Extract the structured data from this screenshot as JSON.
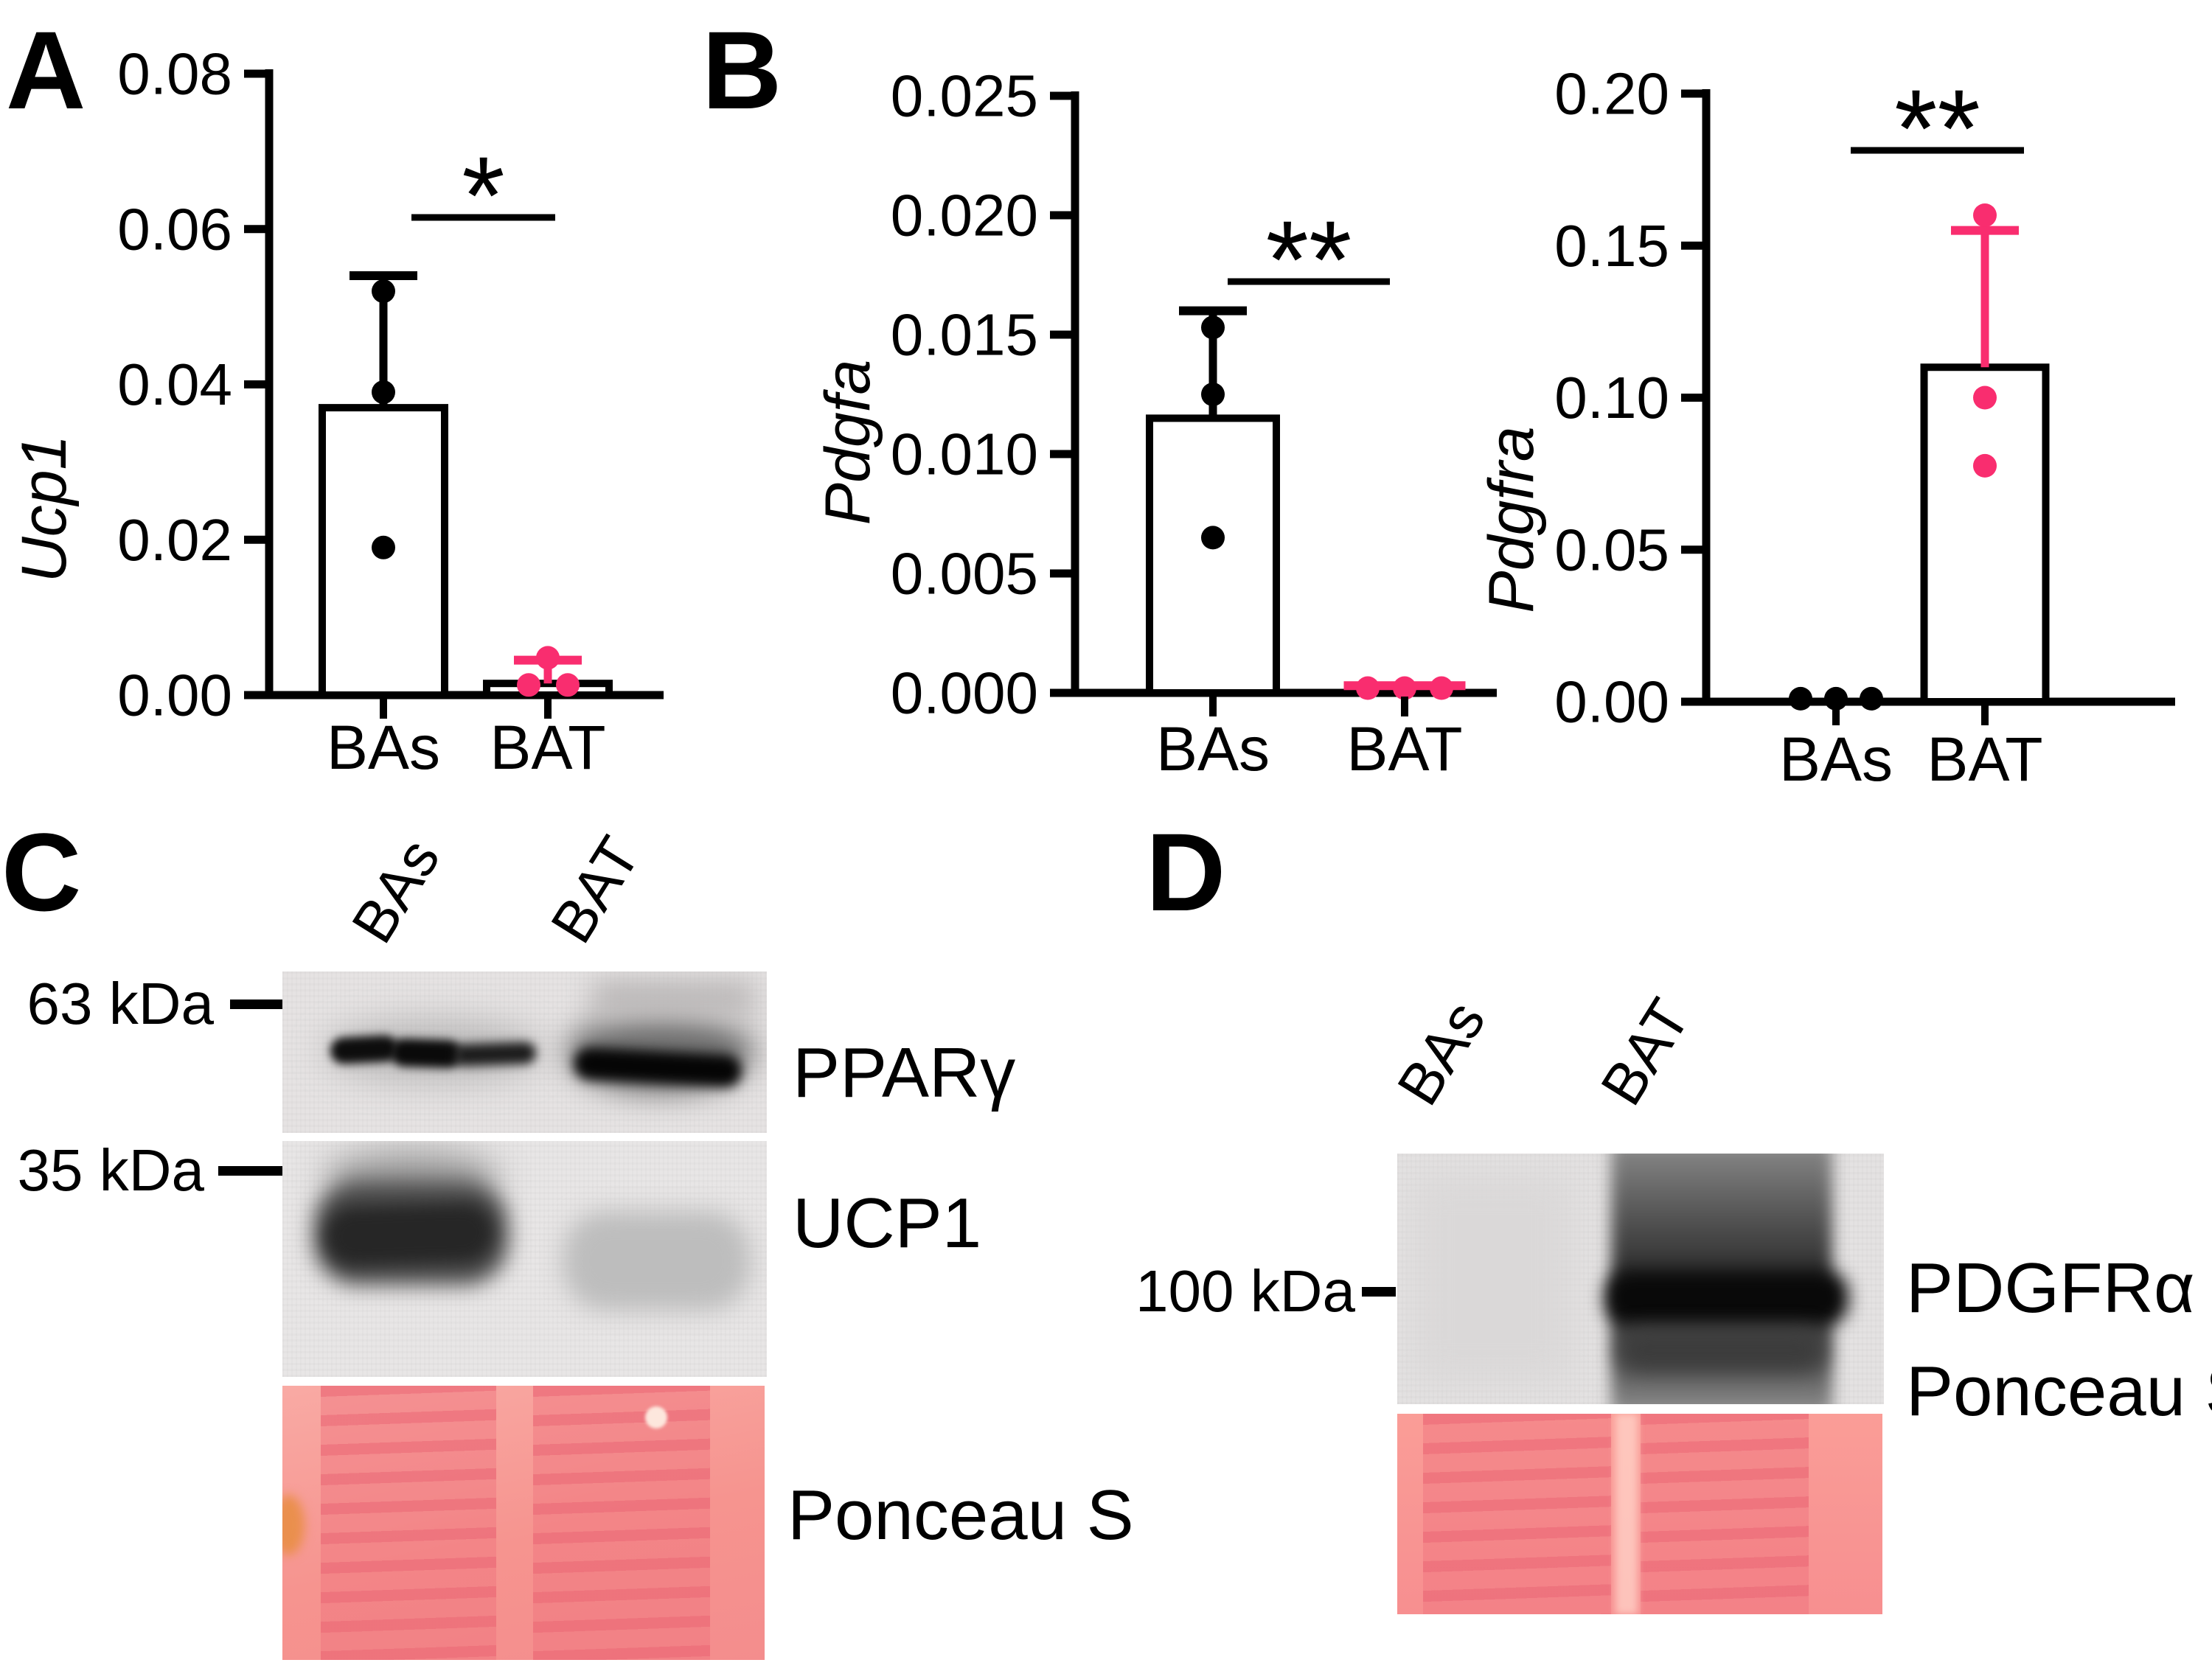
{
  "colors": {
    "accent_pink": "#F92D6F",
    "series_black": "#000000",
    "ponceau_base": "#F6948F",
    "ponceau_lane": "#EE707C",
    "blot_background_gray": "#E7E5E5"
  },
  "panel_labels": {
    "a": "A",
    "b": "B",
    "c": "C",
    "d": "D"
  },
  "western": {
    "c": {
      "lanes": [
        "BAs",
        "BAT"
      ],
      "marker_63": "63 kDa",
      "marker_35": "35 kDa",
      "blot_labels": [
        "PPARγ",
        "UCP1",
        "Ponceau S"
      ]
    },
    "d": {
      "lanes": [
        "BAs",
        "BAT"
      ],
      "marker_100": "100 kDa",
      "blot_labels": [
        "PDGFRα",
        "Ponceau S"
      ]
    }
  },
  "chart_data": [
    {
      "type": "bar",
      "title": "",
      "ylabel": "Ucp1",
      "xlabel": "",
      "ylim": [
        0,
        0.08
      ],
      "ytick_values": [
        0,
        0.02,
        0.04,
        0.06,
        0.08
      ],
      "ytick_labels": [
        "0.00",
        "0.02",
        "0.04",
        "0.06",
        "0.08"
      ],
      "categories": [
        "BAs",
        "BAT"
      ],
      "grid": false,
      "legend": "none",
      "significance": {
        "label": "*",
        "bracket_value": 0.0615
      },
      "bars": [
        {
          "category": "BAs",
          "mean": 0.037,
          "sd_top": 0.054,
          "color": "#000000",
          "points": [
            {
              "v": 0.052,
              "dx": 0
            },
            {
              "v": 0.039,
              "dx": 0
            },
            {
              "v": 0.019,
              "dx": 0
            }
          ]
        },
        {
          "category": "BAT",
          "mean": 0.0015,
          "sd_top": 0.0045,
          "color": "#F92D6F",
          "err_cap_w": 92,
          "points": [
            {
              "v": 0.0048,
              "dx": 0
            },
            {
              "v": 0.0013,
              "dx": -26
            },
            {
              "v": 0.0013,
              "dx": 27
            }
          ]
        }
      ]
    },
    {
      "type": "bar",
      "title": "",
      "ylabel": "Pdgfa",
      "xlabel": "",
      "ylim": [
        0,
        0.025
      ],
      "ytick_values": [
        0,
        0.005,
        0.01,
        0.015,
        0.02,
        0.025
      ],
      "ytick_labels": [
        "0.000",
        "0.005",
        "0.010",
        "0.015",
        "0.020",
        "0.025"
      ],
      "categories": [
        "BAs",
        "BAT"
      ],
      "grid": false,
      "legend": "none",
      "significance": {
        "label": "**",
        "bracket_value": 0.0172
      },
      "bars": [
        {
          "category": "BAs",
          "mean": 0.0115,
          "sd_top": 0.016,
          "color": "#000000",
          "points": [
            {
              "v": 0.0153,
              "dx": 0
            },
            {
              "v": 0.0125,
              "dx": 0
            },
            {
              "v": 0.0065,
              "dx": 0
            }
          ]
        },
        {
          "category": "BAT",
          "mean": 0.0002,
          "sd_top": 0.0003,
          "color": "#F92D6F",
          "err_cap_w": 165,
          "points": [
            {
              "v": 0.0002,
              "dx": -50
            },
            {
              "v": 0.0002,
              "dx": 0
            },
            {
              "v": 0.0002,
              "dx": 50
            }
          ]
        }
      ]
    },
    {
      "type": "bar",
      "title": "",
      "ylabel": "Pdgfra",
      "xlabel": "",
      "ylim": [
        0,
        0.2
      ],
      "ytick_values": [
        0,
        0.05,
        0.1,
        0.15,
        0.2
      ],
      "ytick_labels": [
        "0.00",
        "0.05",
        "0.10",
        "0.15",
        "0.20"
      ],
      "categories": [
        "BAs",
        "BAT"
      ],
      "grid": false,
      "legend": "none",
      "significance": {
        "label": "**",
        "bracket_value": 0.181
      },
      "bars": [
        {
          "category": "BAs",
          "mean": 0.001,
          "sd_top": null,
          "color": "#000000",
          "points": [
            {
              "v": 0.001,
              "dx": -48
            },
            {
              "v": 0.001,
              "dx": 0
            },
            {
              "v": 0.001,
              "dx": 48
            }
          ]
        },
        {
          "category": "BAT",
          "mean": 0.11,
          "sd_top": 0.155,
          "color": "#F92D6F",
          "points": [
            {
              "v": 0.16,
              "dx": 0
            },
            {
              "v": 0.1,
              "dx": 0
            },
            {
              "v": 0.0776,
              "dx": 0
            }
          ]
        }
      ]
    }
  ]
}
